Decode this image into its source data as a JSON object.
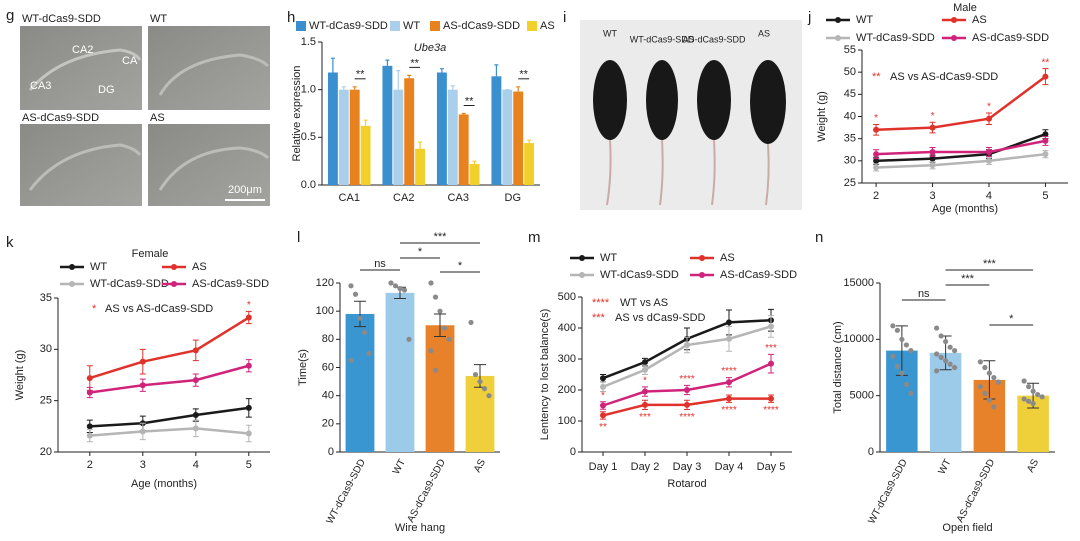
{
  "images": [
    {
      "panel": "g",
      "labels": [
        "WT-dCas9-SDD",
        "WT",
        "AS-dCas9-SDD",
        "AS"
      ],
      "regions": [
        "CA2",
        "CA",
        "CA3",
        "DG"
      ],
      "scale": "200μm"
    },
    {
      "panel": "i",
      "labels": [
        "WT",
        "WT-dCas9-SDD",
        "AS-dCas9-SDD",
        "AS"
      ]
    }
  ],
  "chart_data": [
    {
      "panel": "h",
      "type": "bar",
      "title": "Ube3a",
      "ylabel": "Relative expression",
      "categories": [
        "CA1",
        "CA2",
        "CA3",
        "DG"
      ],
      "series": [
        {
          "name": "WT-dCas9-SDD",
          "color": "#3a8fcf",
          "values": [
            1.18,
            1.25,
            1.18,
            1.14
          ],
          "errors": [
            0.15,
            0.06,
            0.04,
            0.12
          ]
        },
        {
          "name": "WT",
          "color": "#a9cfea",
          "values": [
            1.0,
            1.0,
            1.0,
            1.0
          ],
          "errors": [
            0.03,
            0.2,
            0.04,
            0.0
          ]
        },
        {
          "name": "AS-dCas9-SDD",
          "color": "#e8821e",
          "values": [
            1.0,
            1.12,
            0.74,
            0.98
          ],
          "errors": [
            0.03,
            0.03,
            0.01,
            0.05
          ]
        },
        {
          "name": "AS",
          "color": "#f2d02c",
          "values": [
            0.62,
            0.38,
            0.22,
            0.44
          ],
          "errors": [
            0.06,
            0.07,
            0.03,
            0.03
          ]
        }
      ],
      "annotations": [
        {
          "category": 0,
          "label": "**"
        },
        {
          "category": 1,
          "label": "**"
        },
        {
          "category": 2,
          "label": "**"
        },
        {
          "category": 3,
          "label": "**"
        }
      ],
      "ylim": [
        0,
        1.5
      ],
      "yticks": [
        {
          "value": 0,
          "label": "0.0"
        },
        {
          "value": 0.5,
          "label": "0.5"
        },
        {
          "value": 1,
          "label": "1.0"
        },
        {
          "value": 1.5,
          "label": "1.5"
        }
      ]
    },
    {
      "panel": "j",
      "type": "line",
      "title": "Male",
      "xlabel": "Age (months)",
      "ylabel": "Weight (g)",
      "x": [
        2,
        3,
        4,
        5
      ],
      "xlim": [
        1.75,
        5.4
      ],
      "xticks": [
        2,
        3,
        4,
        5
      ],
      "ylim": [
        25,
        55
      ],
      "yticks": [
        25,
        30,
        35,
        40,
        45,
        50,
        55
      ],
      "series": [
        {
          "name": "WT",
          "color": "#1a1a1a",
          "values": [
            30,
            30.5,
            31.5,
            36
          ],
          "errors": [
            0.8,
            0.8,
            1,
            1
          ]
        },
        {
          "name": "AS",
          "color": "#e0312b",
          "values": [
            37,
            37.5,
            39.5,
            49
          ],
          "errors": [
            1.2,
            1.2,
            1.3,
            1.8
          ],
          "point_labels": [
            "*",
            "*",
            "*",
            "**"
          ]
        },
        {
          "name": "WT-dCas9-SDD",
          "color": "#b5b5b5",
          "values": [
            28.5,
            29,
            30,
            31.5
          ],
          "errors": [
            0.8,
            0.8,
            0.8,
            0.8
          ]
        },
        {
          "name": "AS-dCas9-SDD",
          "color": "#d0237a",
          "values": [
            31.5,
            32,
            32,
            34.5
          ],
          "errors": [
            1,
            1,
            1,
            1
          ]
        }
      ],
      "notes": [
        {
          "stars": "**",
          "text": "AS vs AS-dCas9-SDD"
        }
      ]
    },
    {
      "panel": "k",
      "type": "line",
      "title": "Female",
      "xlabel": "Age (months)",
      "ylabel": "Weight (g)",
      "x": [
        2,
        3,
        4,
        5
      ],
      "xlim": [
        1.4,
        5.4
      ],
      "xticks": [
        2,
        3,
        4,
        5
      ],
      "ylim": [
        20,
        35
      ],
      "yticks": [
        20,
        25,
        30,
        35
      ],
      "series": [
        {
          "name": "WT",
          "color": "#1a1a1a",
          "values": [
            22.5,
            22.8,
            23.6,
            24.3
          ],
          "errors": [
            0.6,
            0.7,
            0.6,
            0.9
          ]
        },
        {
          "name": "AS",
          "color": "#e0312b",
          "values": [
            27.2,
            28.8,
            29.9,
            33.1
          ],
          "errors": [
            1.2,
            1.2,
            1.0,
            0.6
          ],
          "point_labels": [
            null,
            null,
            null,
            "*"
          ]
        },
        {
          "name": "WT-dCas9-SDD",
          "color": "#b5b5b5",
          "values": [
            21.6,
            22,
            22.3,
            21.8
          ],
          "errors": [
            0.6,
            0.8,
            0.8,
            0.8
          ]
        },
        {
          "name": "AS-dCas9-SDD",
          "color": "#d0237a",
          "values": [
            25.8,
            26.5,
            27,
            28.4
          ],
          "errors": [
            0.5,
            0.6,
            0.6,
            0.6
          ]
        }
      ],
      "notes": [
        {
          "stars": "*",
          "text": "AS vs AS-dCas9-SDD"
        }
      ]
    },
    {
      "panel": "l",
      "type": "bar",
      "xlabel": "Wire hang",
      "ylabel": "Time(s)",
      "categories": [
        "WT-dCas9-SDD",
        "WT",
        "AS-dCas9-SDD",
        "AS"
      ],
      "values": [
        98,
        113,
        90,
        54
      ],
      "errors": [
        9,
        4,
        8,
        8
      ],
      "colors": [
        "#3a96d0",
        "#9ccbea",
        "#e8822a",
        "#efcf3a"
      ],
      "points": [
        [
          118,
          112,
          95,
          85,
          70,
          65
        ],
        [
          120,
          118,
          116,
          115,
          80
        ],
        [
          120,
          110,
          100,
          88,
          80,
          72,
          58
        ],
        [
          92,
          55,
          50,
          45,
          40
        ]
      ],
      "comparisons": [
        {
          "pair": [
            0,
            1
          ],
          "label": "ns"
        },
        {
          "pair": [
            1,
            2
          ],
          "label": "*"
        },
        {
          "pair": [
            1,
            3
          ],
          "label": "***"
        },
        {
          "pair": [
            2,
            3
          ],
          "label": "*"
        }
      ],
      "ylim": [
        0,
        120
      ],
      "yticks": [
        0,
        20,
        40,
        60,
        80,
        100,
        120
      ]
    },
    {
      "panel": "m",
      "type": "line",
      "xlabel": "Rotarod",
      "ylabel": "Lentency to lost balance(s)",
      "categories": [
        "Day 1",
        "Day 2",
        "Day 3",
        "Day 4",
        "Day 5"
      ],
      "ylim": [
        0,
        500
      ],
      "yticks": [
        0,
        100,
        200,
        300,
        400,
        500
      ],
      "series": [
        {
          "name": "WT",
          "color": "#1a1a1a",
          "values": [
            238,
            290,
            365,
            418,
            425
          ],
          "errors": [
            12,
            12,
            35,
            40,
            35
          ]
        },
        {
          "name": "AS",
          "color": "#e0312b",
          "values": [
            118,
            152,
            152,
            172,
            172
          ],
          "errors": [
            12,
            15,
            15,
            12,
            12
          ],
          "point_labels": [
            "**",
            "***",
            "****",
            "****",
            "****"
          ]
        },
        {
          "name": "WT-dCas9-SDD",
          "color": "#b5b5b5",
          "values": [
            210,
            265,
            345,
            365,
            405
          ],
          "errors": [
            15,
            15,
            25,
            40,
            35
          ]
        },
        {
          "name": "AS-dCas9-SDD",
          "color": "#d0237a",
          "values": [
            150,
            195,
            200,
            225,
            285
          ],
          "errors": [
            12,
            15,
            15,
            15,
            30
          ],
          "point_labels": [
            "*",
            "*",
            "****",
            "****",
            "***"
          ]
        }
      ],
      "notes": [
        {
          "stars": "****",
          "text": "WT vs AS"
        },
        {
          "stars": "***",
          "text": "AS vs dCas9-SDD"
        }
      ]
    },
    {
      "panel": "n",
      "type": "bar",
      "xlabel": "Open field",
      "ylabel": "Total distance (cm)",
      "categories": [
        "WT-dCas9-SDD",
        "WT",
        "AS-dCas9-SDD",
        "AS"
      ],
      "values": [
        9000,
        8800,
        6400,
        5000
      ],
      "errors": [
        2200,
        1500,
        1700,
        1100
      ],
      "colors": [
        "#3a96d0",
        "#9ccbea",
        "#e8822a",
        "#efcf3a"
      ],
      "points": [
        [
          11200,
          10800,
          10000,
          9500,
          9000,
          8500,
          7600,
          7000,
          6000,
          5200
        ],
        [
          11000,
          10300,
          9800,
          9300,
          9000,
          8700,
          8400,
          8100,
          7800,
          7500,
          7200
        ],
        [
          8000,
          7500,
          7000,
          6600,
          6200,
          5800,
          5200,
          4600,
          4000
        ],
        [
          6300,
          5800,
          5400,
          5100,
          4900,
          4700,
          4500,
          4300
        ]
      ],
      "comparisons": [
        {
          "pair": [
            0,
            1
          ],
          "label": "ns"
        },
        {
          "pair": [
            1,
            2
          ],
          "label": "***"
        },
        {
          "pair": [
            1,
            3
          ],
          "label": "***"
        },
        {
          "pair": [
            2,
            3
          ],
          "label": "*"
        }
      ],
      "ylim": [
        0,
        15000
      ],
      "yticks": [
        0,
        5000,
        10000,
        15000
      ]
    }
  ]
}
